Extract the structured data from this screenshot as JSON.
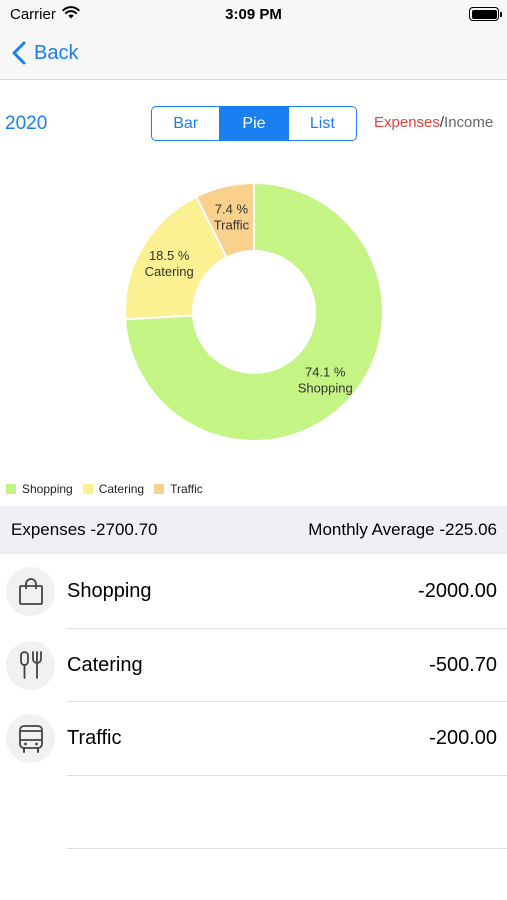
{
  "status_bar": {
    "carrier": "Carrier",
    "time": "3:09 PM"
  },
  "nav": {
    "back_label": "Back"
  },
  "controls": {
    "year": "2020",
    "tabs": [
      {
        "label": "Bar",
        "active": false
      },
      {
        "label": "Pie",
        "active": true
      },
      {
        "label": "List",
        "active": false
      }
    ],
    "expenses_label": "Expenses",
    "separator": "/",
    "income_label": "Income"
  },
  "chart_data": {
    "type": "pie",
    "donut": true,
    "slices": [
      {
        "name": "Shopping",
        "percent": 74.1,
        "label": "74.1 %",
        "color": "#c3f484"
      },
      {
        "name": "Catering",
        "percent": 18.5,
        "label": "18.5 %",
        "color": "#fbf192"
      },
      {
        "name": "Traffic",
        "percent": 7.4,
        "label": "7.4 %",
        "color": "#f9d08c"
      }
    ],
    "legend": [
      "Shopping",
      "Catering",
      "Traffic"
    ],
    "legend_placement": "bottom-left"
  },
  "summary": {
    "expenses": "Expenses -2700.70",
    "monthly_average": "Monthly Average -225.06"
  },
  "rows": [
    {
      "icon": "shopping-bag-icon",
      "name": "Shopping",
      "amount": "-2000.00"
    },
    {
      "icon": "fork-knife-icon",
      "name": "Catering",
      "amount": "-500.70"
    },
    {
      "icon": "bus-icon",
      "name": "Traffic",
      "amount": "-200.00"
    }
  ],
  "colors": {
    "accent": "#1a7ff0",
    "expense_red": "#e9423d"
  }
}
